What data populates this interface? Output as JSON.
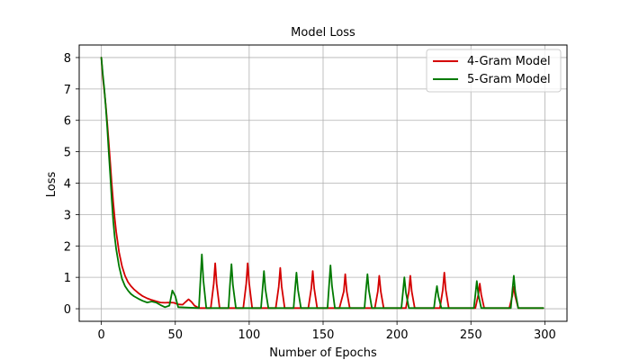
{
  "chart_data": {
    "type": "line",
    "title": "Model Loss",
    "xlabel": "Number of Epochs",
    "ylabel": "Loss",
    "xlim": [
      -15,
      315
    ],
    "ylim": [
      -0.4,
      8.4
    ],
    "xticks": [
      0,
      50,
      100,
      150,
      200,
      250,
      300
    ],
    "yticks": [
      0,
      1,
      2,
      3,
      4,
      5,
      6,
      7,
      8
    ],
    "grid": true,
    "legend_position": "top-right",
    "series": [
      {
        "name": "4-Gram Model",
        "color": "#d40000",
        "x": [
          0,
          1,
          2,
          3,
          4,
          5,
          6,
          7,
          8,
          9,
          10,
          12,
          14,
          16,
          18,
          20,
          22,
          25,
          28,
          31,
          34,
          37,
          40,
          43,
          46,
          49,
          52,
          55,
          57,
          59,
          61,
          63,
          66,
          74,
          76,
          77,
          78,
          80,
          96,
          98,
          99,
          100,
          102,
          118,
          120,
          121,
          122,
          124,
          140,
          142,
          143,
          144,
          146,
          161,
          164,
          165,
          166,
          168,
          185,
          187,
          188,
          189,
          191,
          206,
          208,
          209,
          210,
          212,
          229,
          231,
          232,
          233,
          235,
          253,
          255,
          256,
          257,
          259,
          276,
          278,
          279,
          280,
          282,
          299
        ],
        "y": [
          8.0,
          7.35,
          6.95,
          6.45,
          5.9,
          5.3,
          4.65,
          4.0,
          3.4,
          2.9,
          2.45,
          1.8,
          1.35,
          1.05,
          0.85,
          0.72,
          0.62,
          0.5,
          0.4,
          0.33,
          0.28,
          0.24,
          0.2,
          0.19,
          0.2,
          0.19,
          0.14,
          0.13,
          0.22,
          0.3,
          0.22,
          0.1,
          0.02,
          0.02,
          0.8,
          1.45,
          0.8,
          0.02,
          0.02,
          0.8,
          1.45,
          0.8,
          0.02,
          0.02,
          0.7,
          1.3,
          0.7,
          0.02,
          0.02,
          0.65,
          1.2,
          0.65,
          0.02,
          0.02,
          0.55,
          1.1,
          0.55,
          0.02,
          0.02,
          0.55,
          1.05,
          0.55,
          0.02,
          0.02,
          0.55,
          1.05,
          0.55,
          0.02,
          0.02,
          0.6,
          1.15,
          0.6,
          0.02,
          0.02,
          0.45,
          0.8,
          0.45,
          0.02,
          0.02,
          0.4,
          0.7,
          0.4,
          0.02,
          0.02
        ]
      },
      {
        "name": "5-Gram Model",
        "color": "#007a00",
        "x": [
          0,
          1,
          2,
          3,
          4,
          5,
          6,
          7,
          8,
          9,
          10,
          12,
          14,
          16,
          18,
          20,
          22,
          25,
          28,
          31,
          34,
          37,
          40,
          43,
          46,
          48,
          50,
          52,
          66,
          67,
          68,
          69,
          71,
          86,
          87,
          88,
          89,
          91,
          108,
          109,
          110,
          111,
          113,
          130,
          131,
          132,
          133,
          135,
          153,
          154,
          155,
          156,
          158,
          178,
          179,
          180,
          181,
          183,
          203,
          204,
          205,
          206,
          208,
          225,
          226,
          227,
          228,
          230,
          252,
          253,
          254,
          255,
          257,
          277,
          278,
          279,
          280,
          282,
          299
        ],
        "y": [
          8.0,
          7.45,
          7.0,
          6.4,
          5.75,
          5.0,
          4.25,
          3.5,
          2.8,
          2.3,
          1.9,
          1.35,
          0.95,
          0.72,
          0.58,
          0.47,
          0.4,
          0.32,
          0.25,
          0.2,
          0.23,
          0.2,
          0.12,
          0.05,
          0.1,
          0.58,
          0.4,
          0.05,
          0.02,
          0.9,
          1.73,
          0.9,
          0.02,
          0.02,
          0.75,
          1.42,
          0.75,
          0.02,
          0.02,
          0.62,
          1.2,
          0.62,
          0.02,
          0.02,
          0.6,
          1.15,
          0.6,
          0.02,
          0.02,
          0.72,
          1.38,
          0.72,
          0.02,
          0.02,
          0.58,
          1.1,
          0.58,
          0.02,
          0.02,
          0.52,
          1.0,
          0.52,
          0.02,
          0.02,
          0.4,
          0.72,
          0.4,
          0.02,
          0.02,
          0.45,
          0.88,
          0.45,
          0.02,
          0.02,
          0.55,
          1.05,
          0.55,
          0.02,
          0.02
        ]
      }
    ]
  }
}
